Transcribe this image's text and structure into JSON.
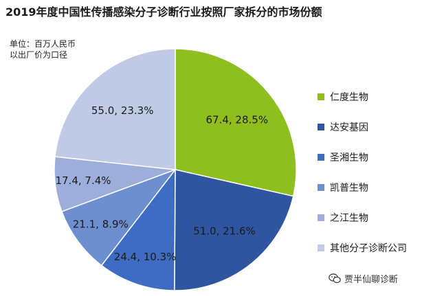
{
  "title": "2019年度中国性传播感染分子诊断行业按照厂家拆分的市场份额",
  "unit_lines": [
    "单位：百万人民币",
    "以出厂价为口径"
  ],
  "watermark": "贾半仙聊诊断",
  "watermark_icon": "wechat-icon",
  "chart_data": {
    "type": "pie",
    "title": "2019年度中国性传播感染分子诊断行业按照厂家拆分的市场份额",
    "unit": "单位：百万人民币",
    "note": "以出厂价为口径",
    "legend_position": "right",
    "start_angle": "12 o'clock, clockwise",
    "slices": [
      {
        "name": "仁度生物",
        "value": 67.4,
        "percent": 28.5,
        "label": "67.4, 28.5%",
        "color": "#8fbe1f"
      },
      {
        "name": "达安基因",
        "value": 51.0,
        "percent": 21.6,
        "label": "51.0, 21.6%",
        "color": "#2f55a0"
      },
      {
        "name": "圣湘生物",
        "value": 24.4,
        "percent": 10.3,
        "label": "24.4, 10.3%",
        "color": "#3d6cc2"
      },
      {
        "name": "凯普生物",
        "value": 21.1,
        "percent": 8.9,
        "label": "21.1, 8.9%",
        "color": "#6e8fcf"
      },
      {
        "name": "之江生物",
        "value": 17.4,
        "percent": 7.4,
        "label": "17.4, 7.4%",
        "color": "#9daedb"
      },
      {
        "name": "其他分子诊断公司",
        "value": 55.0,
        "percent": 23.3,
        "label": "55.0, 23.3%",
        "color": "#c0c9e6"
      }
    ]
  }
}
